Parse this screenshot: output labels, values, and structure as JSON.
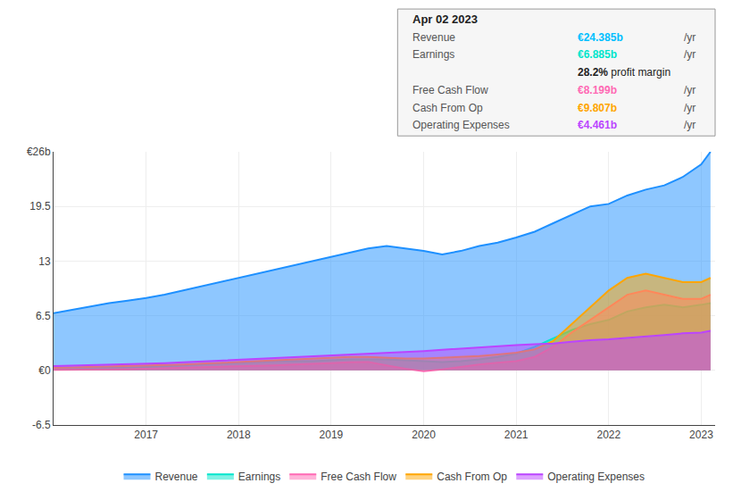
{
  "chart_data": {
    "type": "area",
    "x": [
      2016.0,
      2016.2,
      2016.4,
      2016.6,
      2016.8,
      2017.0,
      2017.2,
      2017.4,
      2017.6,
      2017.8,
      2018.0,
      2018.2,
      2018.4,
      2018.6,
      2018.8,
      2019.0,
      2019.2,
      2019.4,
      2019.6,
      2019.8,
      2020.0,
      2020.2,
      2020.4,
      2020.6,
      2020.8,
      2021.0,
      2021.2,
      2021.4,
      2021.6,
      2021.8,
      2022.0,
      2022.2,
      2022.4,
      2022.6,
      2022.8,
      2023.0,
      2023.1
    ],
    "series": [
      {
        "name": "Revenue",
        "color": "#1e90ff",
        "values": [
          6.8,
          7.2,
          7.6,
          8.0,
          8.3,
          8.6,
          9.0,
          9.5,
          10.0,
          10.5,
          11.0,
          11.5,
          12.0,
          12.5,
          13.0,
          13.5,
          14.0,
          14.5,
          14.8,
          14.5,
          14.2,
          13.8,
          14.2,
          14.8,
          15.2,
          15.8,
          16.5,
          17.5,
          18.5,
          19.5,
          19.8,
          20.8,
          21.5,
          22.0,
          23.0,
          24.5,
          26.0
        ]
      },
      {
        "name": "Earnings",
        "color": "#00e5cc",
        "values": [
          0.2,
          0.2,
          0.3,
          0.3,
          0.3,
          0.4,
          0.5,
          0.6,
          0.7,
          0.8,
          0.9,
          1.0,
          1.1,
          1.1,
          1.1,
          1.2,
          1.3,
          1.3,
          1.3,
          1.2,
          1.1,
          1.0,
          1.1,
          1.3,
          1.6,
          2.0,
          2.8,
          3.8,
          4.8,
          5.5,
          6.0,
          7.0,
          7.5,
          7.8,
          7.5,
          7.8,
          8.0
        ]
      },
      {
        "name": "Free Cash Flow",
        "color": "#ff69b4",
        "values": [
          0.05,
          0.05,
          0.05,
          0.1,
          0.15,
          0.2,
          0.25,
          0.3,
          0.35,
          0.4,
          0.45,
          0.5,
          0.6,
          0.7,
          0.75,
          0.85,
          0.95,
          1.0,
          0.6,
          0.2,
          -0.1,
          0.1,
          0.4,
          0.7,
          0.9,
          1.1,
          1.6,
          2.8,
          4.5,
          6.0,
          7.5,
          9.0,
          9.5,
          9.0,
          8.5,
          8.5,
          9.0
        ]
      },
      {
        "name": "Cash From Op",
        "color": "#ffa500",
        "values": [
          0.3,
          0.35,
          0.4,
          0.45,
          0.5,
          0.55,
          0.6,
          0.7,
          0.8,
          0.9,
          1.0,
          1.1,
          1.2,
          1.3,
          1.4,
          1.5,
          1.6,
          1.6,
          1.5,
          1.4,
          1.4,
          1.5,
          1.6,
          1.7,
          1.9,
          2.1,
          2.5,
          3.5,
          5.5,
          7.5,
          9.5,
          11.0,
          11.5,
          11.0,
          10.5,
          10.5,
          11.0
        ]
      },
      {
        "name": "Operating Expenses",
        "color": "#bb44ff",
        "values": [
          0.5,
          0.55,
          0.6,
          0.65,
          0.7,
          0.75,
          0.85,
          0.95,
          1.05,
          1.15,
          1.25,
          1.35,
          1.45,
          1.55,
          1.65,
          1.75,
          1.85,
          1.95,
          2.05,
          2.15,
          2.3,
          2.45,
          2.6,
          2.75,
          2.9,
          3.0,
          3.1,
          3.2,
          3.4,
          3.6,
          3.7,
          3.85,
          4.0,
          4.2,
          4.4,
          4.5,
          4.7
        ]
      }
    ],
    "xlim": [
      2016.0,
      2023.15
    ],
    "xticks": [
      2017,
      2018,
      2019,
      2020,
      2021,
      2022,
      2023
    ],
    "ylim": [
      -6.5,
      26
    ],
    "yticks": [
      -6.5,
      {
        "value": 0,
        "label": "€0"
      },
      6.5,
      13,
      19.5,
      {
        "value": 26,
        "label": "€26b"
      }
    ],
    "grid": true,
    "tooltip": {
      "title": "Apr 02 2023",
      "rows": [
        {
          "label": "Revenue",
          "value": "€24.385b",
          "unit": "/yr",
          "color": "#00bfff"
        },
        {
          "label": "Earnings",
          "value": "€6.885b",
          "unit": "/yr",
          "color": "#00e5cc",
          "note": [
            "28.2%",
            "profit margin"
          ]
        },
        {
          "label": "Free Cash Flow",
          "value": "€8.199b",
          "unit": "/yr",
          "color": "#ff69b4"
        },
        {
          "label": "Cash From Op",
          "value": "€9.807b",
          "unit": "/yr",
          "color": "#ffa500"
        },
        {
          "label": "Operating Expenses",
          "value": "€4.461b",
          "unit": "/yr",
          "color": "#bb44ff"
        }
      ]
    }
  }
}
